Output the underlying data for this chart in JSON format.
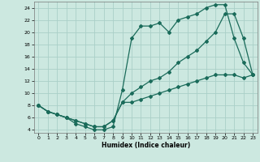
{
  "xlabel": "Humidex (Indice chaleur)",
  "xlim": [
    -0.5,
    23.5
  ],
  "ylim": [
    3.5,
    25
  ],
  "xticks": [
    0,
    1,
    2,
    3,
    4,
    5,
    6,
    7,
    8,
    9,
    10,
    11,
    12,
    13,
    14,
    15,
    16,
    17,
    18,
    19,
    20,
    21,
    22,
    23
  ],
  "yticks": [
    4,
    6,
    8,
    10,
    12,
    14,
    16,
    18,
    20,
    22,
    24
  ],
  "bg_color": "#cce8e0",
  "line_color": "#1a6b5a",
  "grid_color": "#aacfc8",
  "curve1_x": [
    0,
    1,
    2,
    3,
    4,
    5,
    6,
    7,
    8,
    9,
    10,
    11,
    12,
    13,
    14,
    15,
    16,
    17,
    18,
    19,
    20,
    21,
    22,
    23
  ],
  "curve1_y": [
    8,
    7,
    6.5,
    6,
    5,
    4.5,
    4.0,
    4.0,
    4.5,
    10.5,
    19,
    21,
    21,
    21.5,
    20,
    22,
    22.5,
    23,
    24,
    24.5,
    24.5,
    19,
    15,
    13
  ],
  "curve2_x": [
    0,
    1,
    2,
    3,
    4,
    5,
    6,
    7,
    8,
    9,
    10,
    11,
    12,
    13,
    14,
    15,
    16,
    17,
    18,
    19,
    20,
    21,
    22,
    23
  ],
  "curve2_y": [
    8,
    7,
    6.5,
    6,
    5.5,
    5,
    4.5,
    4.5,
    5.5,
    8.5,
    10,
    11,
    12,
    12.5,
    13.5,
    15,
    16,
    17,
    18.5,
    20,
    23,
    23,
    19,
    13
  ],
  "curve3_x": [
    0,
    1,
    2,
    3,
    4,
    5,
    6,
    7,
    8,
    9,
    10,
    11,
    12,
    13,
    14,
    15,
    16,
    17,
    18,
    19,
    20,
    21,
    22,
    23
  ],
  "curve3_y": [
    8,
    7,
    6.5,
    6,
    5.5,
    5,
    4.5,
    4.5,
    5.5,
    8.5,
    8.5,
    9,
    9.5,
    10,
    10.5,
    11,
    11.5,
    12,
    12.5,
    13,
    13,
    13,
    12.5,
    13
  ]
}
